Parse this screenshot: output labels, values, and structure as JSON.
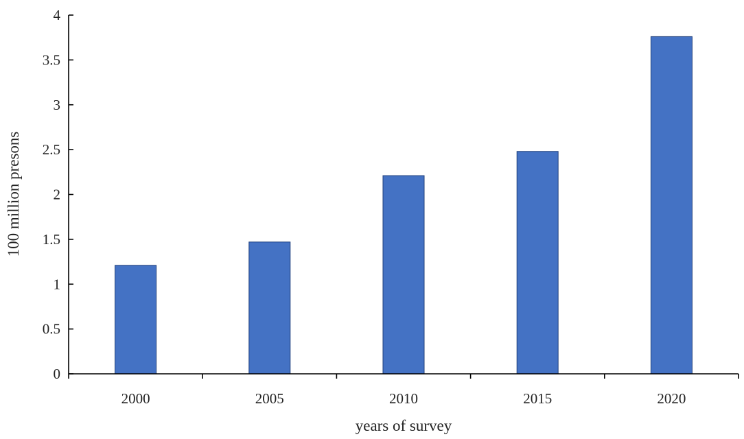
{
  "chart_data": {
    "type": "bar",
    "categories": [
      "2000",
      "2005",
      "2010",
      "2015",
      "2020"
    ],
    "values": [
      1.21,
      1.47,
      2.21,
      2.48,
      3.76
    ],
    "title": "",
    "xlabel": "years of survey",
    "ylabel": "100 million presons",
    "ylim": [
      0,
      4
    ],
    "yticks": [
      "0",
      "0.5",
      "1",
      "1.5",
      "2",
      "2.5",
      "3",
      "3.5",
      "4"
    ],
    "grid": false,
    "bar_color": "#4472c4"
  }
}
